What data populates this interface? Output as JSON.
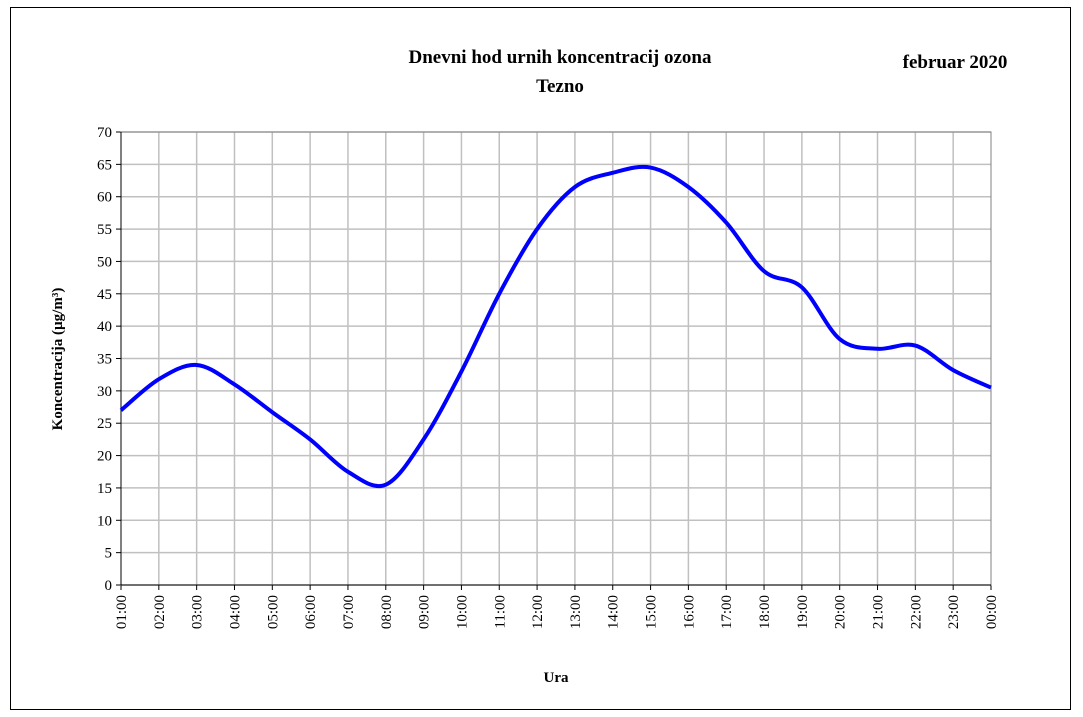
{
  "chart_data": {
    "type": "line",
    "title": "Dnevni hod urnih  koncentracij ozona",
    "subtitle": "Tezno",
    "annotation": "februar 2020",
    "x_label": "Ura",
    "y_label": "Koncentracija  (µg/m³)",
    "categories": [
      "01:00",
      "02:00",
      "03:00",
      "04:00",
      "05:00",
      "06:00",
      "07:00",
      "08:00",
      "09:00",
      "10:00",
      "11:00",
      "12:00",
      "13:00",
      "14:00",
      "15:00",
      "16:00",
      "17:00",
      "18:00",
      "19:00",
      "20:00",
      "21:00",
      "22:00",
      "23:00",
      "00:00"
    ],
    "series": [
      {
        "color": "#0000ff",
        "values": [
          27,
          31.8,
          34,
          31,
          26.7,
          22.5,
          17.5,
          15.5,
          22.5,
          33,
          45,
          55,
          61.5,
          63.7,
          64.5,
          61.5,
          56,
          48.5,
          46,
          38,
          36.5,
          37,
          33.2,
          30.5
        ]
      }
    ],
    "ylim": [
      0,
      70
    ],
    "yticks": [
      0,
      5,
      10,
      15,
      20,
      25,
      30,
      35,
      40,
      45,
      50,
      55,
      60,
      65,
      70
    ],
    "grid": true
  }
}
